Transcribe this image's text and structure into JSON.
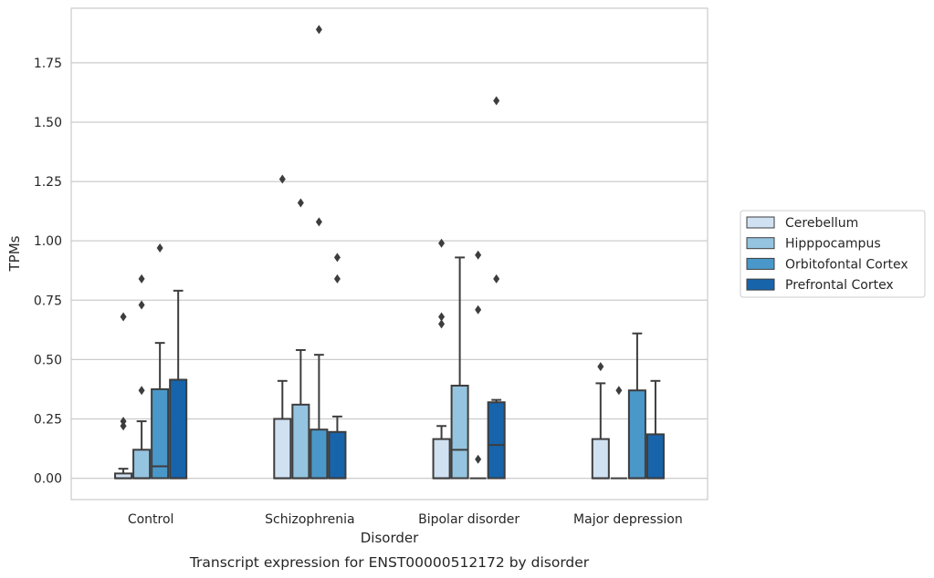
{
  "chart_data": {
    "type": "box",
    "caption": "Transcript expression for ENST00000512172 by disorder",
    "xlabel": "Disorder",
    "ylabel": "TPMs",
    "ylim": [
      -0.09,
      1.98
    ],
    "yticks": [
      0.0,
      0.25,
      0.5,
      0.75,
      1.0,
      1.25,
      1.5,
      1.75
    ],
    "ytick_labels": [
      "0.00",
      "0.25",
      "0.50",
      "0.75",
      "1.00",
      "1.25",
      "1.50",
      "1.75"
    ],
    "grid": "horizontal",
    "legend_position": "right",
    "categories": [
      "Control",
      "Schizophrenia",
      "Bipolar disorder",
      "Major depression"
    ],
    "series": [
      {
        "name": "Cerebellum",
        "color": "#d0e1f2",
        "boxes": [
          {
            "q1": 0.0,
            "median": 0.0,
            "q3": 0.02,
            "whisker_low": 0.0,
            "whisker_high": 0.04,
            "outliers": [
              0.68,
              0.24,
              0.22
            ]
          },
          {
            "q1": 0.0,
            "median": 0.0,
            "q3": 0.25,
            "whisker_low": 0.0,
            "whisker_high": 0.41,
            "outliers": [
              1.26
            ]
          },
          {
            "q1": 0.0,
            "median": 0.0,
            "q3": 0.165,
            "whisker_low": 0.0,
            "whisker_high": 0.22,
            "outliers": [
              0.99,
              0.68,
              0.65
            ]
          },
          {
            "q1": 0.0,
            "median": 0.0,
            "q3": 0.165,
            "whisker_low": 0.0,
            "whisker_high": 0.4,
            "outliers": [
              0.47
            ]
          }
        ]
      },
      {
        "name": "Hipppocampus",
        "color": "#94c4df",
        "boxes": [
          {
            "q1": 0.0,
            "median": 0.0,
            "q3": 0.12,
            "whisker_low": 0.0,
            "whisker_high": 0.24,
            "outliers": [
              0.84,
              0.73,
              0.37
            ]
          },
          {
            "q1": 0.0,
            "median": 0.0,
            "q3": 0.31,
            "whisker_low": 0.0,
            "whisker_high": 0.54,
            "outliers": [
              1.16
            ]
          },
          {
            "q1": 0.0,
            "median": 0.12,
            "q3": 0.39,
            "whisker_low": 0.0,
            "whisker_high": 0.93,
            "outliers": []
          },
          {
            "q1": 0.0,
            "median": 0.0,
            "q3": 0.0,
            "whisker_low": 0.0,
            "whisker_high": 0.0,
            "outliers": [
              0.37
            ]
          }
        ]
      },
      {
        "name": "Orbitofontal Cortex",
        "color": "#4a98c9",
        "boxes": [
          {
            "q1": 0.0,
            "median": 0.05,
            "q3": 0.375,
            "whisker_low": 0.0,
            "whisker_high": 0.57,
            "outliers": [
              0.97
            ]
          },
          {
            "q1": 0.0,
            "median": 0.0,
            "q3": 0.205,
            "whisker_low": 0.0,
            "whisker_high": 0.52,
            "outliers": [
              1.89,
              1.08
            ]
          },
          {
            "q1": 0.0,
            "median": 0.0,
            "q3": 0.0,
            "whisker_low": 0.0,
            "whisker_high": 0.0,
            "outliers": [
              0.94,
              0.71,
              0.08
            ]
          },
          {
            "q1": 0.0,
            "median": 0.0,
            "q3": 0.37,
            "whisker_low": 0.0,
            "whisker_high": 0.61,
            "outliers": []
          }
        ]
      },
      {
        "name": "Prefrontal Cortex",
        "color": "#1764ab",
        "boxes": [
          {
            "q1": 0.0,
            "median": 0.0,
            "q3": 0.415,
            "whisker_low": 0.0,
            "whisker_high": 0.79,
            "outliers": []
          },
          {
            "q1": 0.0,
            "median": 0.0,
            "q3": 0.195,
            "whisker_low": 0.0,
            "whisker_high": 0.26,
            "outliers": [
              0.93,
              0.84
            ]
          },
          {
            "q1": 0.0,
            "median": 0.14,
            "q3": 0.32,
            "whisker_low": 0.0,
            "whisker_high": 0.33,
            "outliers": [
              1.59,
              0.84
            ]
          },
          {
            "q1": 0.0,
            "median": 0.0,
            "q3": 0.185,
            "whisker_low": 0.0,
            "whisker_high": 0.41,
            "outliers": []
          }
        ]
      }
    ]
  }
}
